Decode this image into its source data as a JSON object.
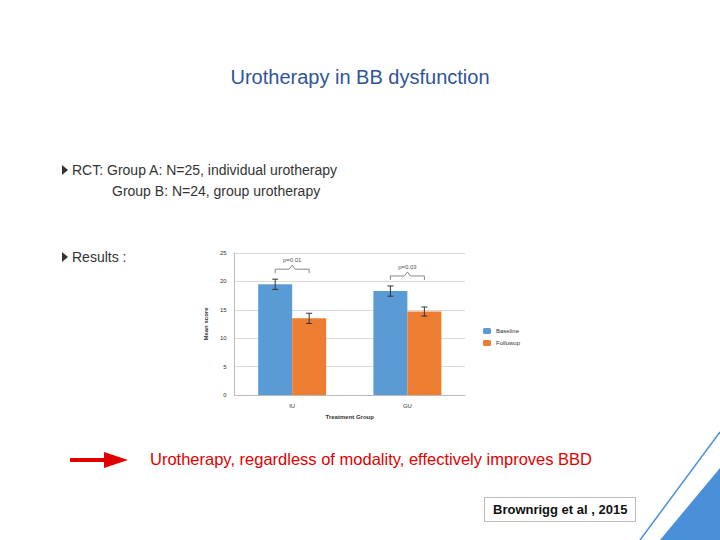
{
  "slide": {
    "title": "Urotherapy in BB dysfunction",
    "bullets": [
      {
        "lead": "RCT",
        "text": ": Group A: N=25, individual urotherapy"
      },
      {
        "text": "Group B: N=24, group urotherapy"
      }
    ],
    "results_label": "Results :",
    "conclusion": "Urotherapy, regardless of modality, effectively improves BBD",
    "citation": "Brownrigg et al , 2015"
  },
  "chart_data": {
    "type": "bar",
    "categories": [
      "IU",
      "GU"
    ],
    "series": [
      {
        "name": "Baseline",
        "color": "#5b9bd5",
        "values": [
          19.5,
          18.3
        ],
        "errors": [
          0.9,
          0.9
        ]
      },
      {
        "name": "Followup",
        "color": "#ed7d31",
        "values": [
          13.5,
          14.7
        ],
        "errors": [
          0.9,
          0.8
        ]
      }
    ],
    "x_label": "Treatment Group",
    "y_label": "Mean score",
    "ylim": [
      0,
      25
    ],
    "yticks": [
      0,
      5,
      10,
      15,
      20,
      25
    ],
    "grid": true,
    "legend": "right",
    "annotations": [
      {
        "text": "p=0.01",
        "category": "IU"
      },
      {
        "text": "p=0.03",
        "category": "GU"
      }
    ]
  }
}
